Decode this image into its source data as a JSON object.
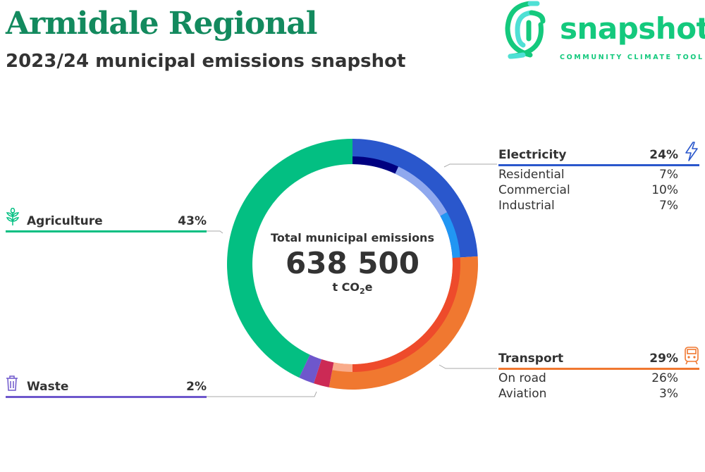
{
  "header": {
    "title": "Armidale Regional",
    "subtitle": "2023/24 municipal emissions snapshot"
  },
  "logo": {
    "word": "snapshot",
    "tagline": "COMMUNITY CLIMATE TOOL",
    "color": "#14c97d"
  },
  "center": {
    "label": "Total municipal emissions",
    "value": "638 500",
    "unit_prefix": "t CO",
    "unit_sub": "2",
    "unit_suffix": "e"
  },
  "sectors": {
    "electricity": {
      "label": "Electricity",
      "pct": "24%",
      "color": "#2a57cc",
      "icon": "lightning-icon",
      "subs": [
        {
          "label": "Residential",
          "pct": "7%"
        },
        {
          "label": "Commercial",
          "pct": "10%"
        },
        {
          "label": "Industrial",
          "pct": "7%"
        }
      ]
    },
    "transport": {
      "label": "Transport",
      "pct": "29%",
      "color": "#f07830",
      "icon": "train-icon",
      "subs": [
        {
          "label": "On road",
          "pct": "26%"
        },
        {
          "label": "Aviation",
          "pct": "3%"
        }
      ]
    },
    "agriculture": {
      "label": "Agriculture",
      "pct": "43%",
      "color": "#03bf82",
      "icon": "plant-icon"
    },
    "waste": {
      "label": "Waste",
      "pct": "2%",
      "color": "#6e57cc",
      "icon": "trash-icon"
    }
  },
  "chart_data": {
    "type": "pie",
    "outer": [
      {
        "name": "Electricity",
        "value": 24,
        "color": "#2a57cc"
      },
      {
        "name": "Transport",
        "value": 29,
        "color": "#f07830"
      },
      {
        "name": "",
        "value": 2,
        "color": "#cc2a55"
      },
      {
        "name": "Waste",
        "value": 2,
        "color": "#6e57cc"
      },
      {
        "name": "Agriculture",
        "value": 43,
        "color": "#03bf82"
      }
    ],
    "inner": [
      {
        "name": "Residential",
        "value": 7,
        "color": "#000080"
      },
      {
        "name": "Commercial",
        "value": 10,
        "color": "#8fa8ee"
      },
      {
        "name": "Industrial",
        "value": 7,
        "color": "#2196f3"
      },
      {
        "name": "On road",
        "value": 26,
        "color": "#ee4b2b"
      },
      {
        "name": "Aviation",
        "value": 3,
        "color": "#f9ab8a"
      }
    ]
  }
}
